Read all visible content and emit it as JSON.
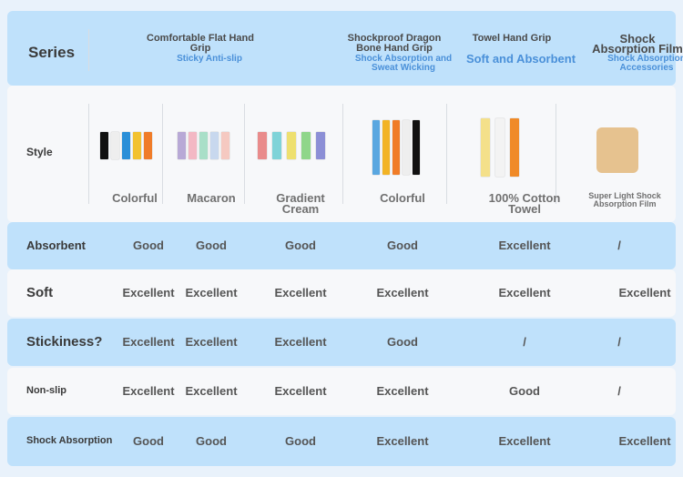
{
  "header": {
    "label": "Series",
    "series": [
      {
        "name": "Comfortable Flat Hand Grip",
        "tagline": "Sticky Anti-slip"
      },
      {
        "name": "Shockproof Dragon Bone Hand Grip",
        "tagline": "Shock Absorption and Sweat Wicking"
      },
      {
        "name": "Towel Hand Grip",
        "tagline": "Soft and Absorbent"
      },
      {
        "name": "Shock Absorption Film",
        "tagline": "Shock Absorption Accessories"
      }
    ]
  },
  "styles": {
    "label": "Style",
    "items": [
      "Colorful",
      "Macaron",
      "Gradient Cream",
      "Colorful",
      "100% Cotton Towel",
      "Super Light Shock Absorption Film"
    ]
  },
  "rows": [
    {
      "label": "Absorbent",
      "values": [
        "Good",
        "Good",
        "Good",
        "Good",
        "Excellent",
        "/"
      ]
    },
    {
      "label": "Soft",
      "values": [
        "Excellent",
        "Excellent",
        "Excellent",
        "Excellent",
        "Excellent",
        "Excellent"
      ]
    },
    {
      "label": "Stickiness?",
      "values": [
        "Excellent",
        "Excellent",
        "Excellent",
        "Good",
        "/",
        "/"
      ]
    },
    {
      "label": "Non-slip",
      "values": [
        "Excellent",
        "Excellent",
        "Excellent",
        "Excellent",
        "Good",
        "/"
      ]
    },
    {
      "label": "Shock Absorption",
      "values": [
        "Good",
        "Good",
        "Good",
        "Excellent",
        "Excellent",
        "Excellent"
      ]
    }
  ]
}
